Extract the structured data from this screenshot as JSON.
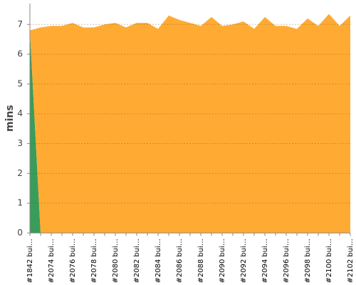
{
  "chart_data": {
    "type": "stacked-area",
    "y_label": "mins",
    "categories": [
      "#1842 bui…",
      null,
      "#2074 bui…",
      null,
      "#2076 bui…",
      null,
      "#2078 bui…",
      null,
      "#2080 bui…",
      null,
      "#2082 bui…",
      null,
      "#2084 bui…",
      null,
      "#2086 bui…",
      null,
      "#2088 bui…",
      null,
      "#2090 bui…",
      null,
      "#2092 bui…",
      null,
      "#2094 bui…",
      null,
      "#2096 bui…",
      null,
      "#2098 bui…",
      null,
      "#2100 bui…",
      null,
      "#2102 bui…"
    ],
    "series": [
      {
        "color": "#3a9c5a",
        "values": [
          6.8,
          0,
          0,
          0,
          0,
          0,
          0,
          0,
          0,
          0,
          0,
          0,
          0,
          0,
          0,
          0,
          0,
          0,
          0,
          0,
          0,
          0,
          0,
          0,
          0,
          0,
          0,
          0,
          0,
          0,
          0
        ]
      },
      {
        "color": "#ffab33",
        "values": [
          0,
          6.9,
          6.95,
          6.95,
          7.05,
          6.9,
          6.9,
          7.0,
          7.05,
          6.9,
          7.05,
          7.05,
          6.85,
          7.3,
          7.15,
          7.05,
          6.95,
          7.25,
          6.95,
          7.0,
          7.1,
          6.85,
          7.25,
          6.95,
          6.95,
          6.85,
          7.2,
          6.95,
          7.35,
          6.95,
          7.3
        ]
      }
    ],
    "ylim": [
      0,
      7.7
    ],
    "yticks": [
      0,
      1,
      2,
      3,
      4,
      5,
      6,
      7
    ],
    "grid": true
  }
}
